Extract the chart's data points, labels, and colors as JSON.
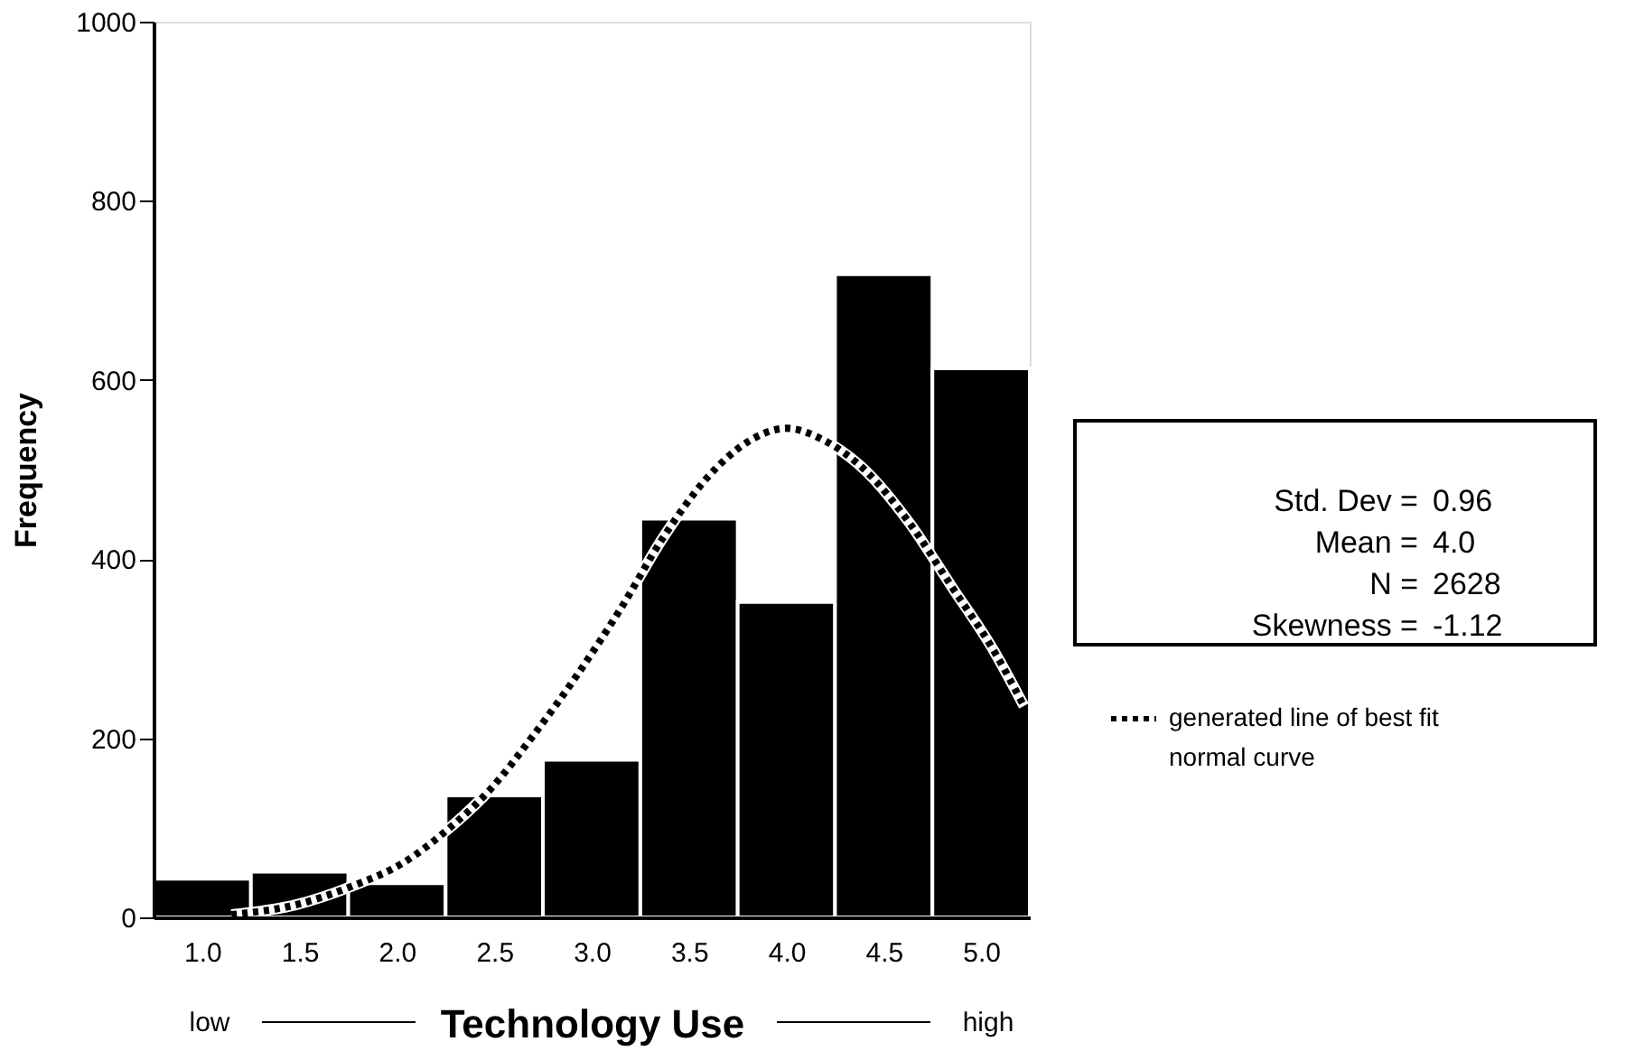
{
  "chart_data": {
    "type": "histogram",
    "xlabel": "Technology Use",
    "ylabel": "Frequency",
    "bins": [
      0.75,
      1.25,
      1.75,
      2.25,
      2.75,
      3.25,
      3.75,
      4.25,
      4.75,
      5.25
    ],
    "values": [
      43,
      51,
      38,
      136,
      176,
      445,
      352,
      718,
      613
    ],
    "color": "#000000",
    "xlim": [
      0.75,
      5.25
    ],
    "xticks": [
      {
        "value": 1,
        "label": "1.0"
      },
      {
        "value": 1.5,
        "label": "1.5"
      },
      {
        "value": 2,
        "label": "2.0"
      },
      {
        "value": 2.5,
        "label": "2.5"
      },
      {
        "value": 3,
        "label": "3.0"
      },
      {
        "value": 3.5,
        "label": "3.5"
      },
      {
        "value": 4,
        "label": "4.0"
      },
      {
        "value": 4.5,
        "label": "4.5"
      },
      {
        "value": 5,
        "label": "5.0"
      }
    ],
    "ylim": [
      0,
      1000
    ],
    "yticks": [
      0,
      200,
      400,
      600,
      800,
      1000
    ],
    "legend": "right",
    "annotations": [
      "Std. Dev = 0.96",
      "Mean = 4.0",
      "N = 2628",
      "Skewness = -1.12",
      "low",
      "high"
    ],
    "series": [
      {
        "name": "generated line of best fit normal curve",
        "type": "line",
        "color": "#000000",
        "line_style": "dotted",
        "x": [
          1.15,
          1.48,
          1.76,
          2.04,
          2.26,
          2.48,
          2.7,
          2.93,
          3.15,
          3.37,
          3.59,
          3.81,
          4.0,
          4.19,
          4.41,
          4.63,
          4.85,
          5.07,
          5.22
        ],
        "values": [
          3,
          14,
          34,
          62,
          98,
          143,
          203,
          272,
          345,
          425,
          490,
          532,
          546,
          533,
          498,
          441,
          369,
          296,
          236
        ]
      }
    ]
  }
}
